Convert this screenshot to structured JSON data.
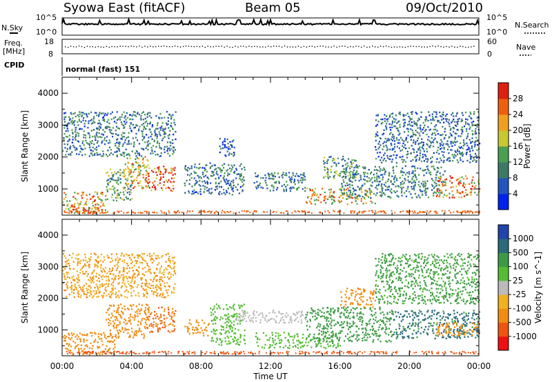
{
  "header": {
    "station": "Syowa East (fitACF)",
    "beam": "Beam 05",
    "date": "09/Oct/2010"
  },
  "status_panels": {
    "nsky_label": "N.Sky",
    "nsearch_label": "N.Search",
    "noise_ticks_left": [
      "10^5",
      "10^0"
    ],
    "noise_ticks_right": [
      "10^5",
      "10^0"
    ],
    "freq_label_1": "Freq.",
    "freq_label_2": "[MHz]",
    "freq_ticks": [
      "18",
      "8"
    ],
    "nave_label": "Nave",
    "nave_ticks": [
      "60",
      "0"
    ],
    "cpid_label": "CPID",
    "cpid_text": "normal (fast) 151"
  },
  "colors": {
    "power_scale": [
      "#0022ee",
      "#2255bb",
      "#3d7a66",
      "#4aa050",
      "#c8c832",
      "#f0a020",
      "#ee6010",
      "#dd2010"
    ],
    "velocity_scale": [
      "#ee1010",
      "#ee5510",
      "#f08c10",
      "#f0b020",
      "#bbbbbb",
      "#55bb33",
      "#3c9a44",
      "#2a6a7a",
      "#2244aa"
    ]
  },
  "chart_data": [
    {
      "type": "heatmap",
      "panel": "power",
      "xlabel": "Time UT",
      "ylabel": "Slant Range [km]",
      "colorbar_label": "Power [dB]",
      "x_ticks": [
        "00:00",
        "04:00",
        "08:00",
        "12:00",
        "16:00",
        "20:00",
        "00:00"
      ],
      "xlim_hours": [
        0,
        24
      ],
      "y_ticks": [
        "1000",
        "2000",
        "3000",
        "4000"
      ],
      "ylim_km": [
        180,
        4500
      ],
      "colorbar_ticks": [
        "4",
        "8",
        "12",
        "16",
        "20",
        "24",
        "28"
      ],
      "colorbar_range": [
        0,
        32
      ],
      "regions": [
        {
          "t0": 0.0,
          "t1": 2.5,
          "r0": 200,
          "r1": 900,
          "value": 22
        },
        {
          "t0": 0.5,
          "t1": 2.0,
          "r0": 200,
          "r1": 400,
          "value": 28
        },
        {
          "t0": 2.5,
          "t1": 4.0,
          "r0": 600,
          "r1": 1600,
          "value": 14
        },
        {
          "t0": 3.5,
          "t1": 5.0,
          "r0": 1000,
          "r1": 2000,
          "value": 20
        },
        {
          "t0": 4.8,
          "t1": 6.5,
          "r0": 900,
          "r1": 1700,
          "value": 28
        },
        {
          "t0": 0.0,
          "t1": 6.5,
          "r0": 2000,
          "r1": 3400,
          "value": 9
        },
        {
          "t0": 7.0,
          "t1": 10.5,
          "r0": 800,
          "r1": 1800,
          "value": 9
        },
        {
          "t0": 9.0,
          "t1": 10.0,
          "r0": 2000,
          "r1": 2600,
          "value": 7
        },
        {
          "t0": 11.0,
          "t1": 14.0,
          "r0": 900,
          "r1": 1500,
          "value": 10
        },
        {
          "t0": 14.0,
          "t1": 18.0,
          "r0": 500,
          "r1": 1000,
          "value": 20
        },
        {
          "t0": 15.0,
          "t1": 17.0,
          "r0": 1300,
          "r1": 2000,
          "value": 12
        },
        {
          "t0": 16.0,
          "t1": 22.0,
          "r0": 700,
          "r1": 1700,
          "value": 10
        },
        {
          "t0": 21.5,
          "t1": 24.0,
          "r0": 700,
          "r1": 1400,
          "value": 24
        },
        {
          "t0": 18.0,
          "t1": 24.0,
          "r0": 1800,
          "r1": 3400,
          "value": 8
        }
      ]
    },
    {
      "type": "heatmap",
      "panel": "velocity",
      "xlabel": "Time UT",
      "ylabel": "Slant Range [km]",
      "colorbar_label": "Velocity [m s^-1]",
      "x_ticks": [
        "00:00",
        "04:00",
        "08:00",
        "12:00",
        "16:00",
        "20:00",
        "00:00"
      ],
      "xlim_hours": [
        0,
        24
      ],
      "y_ticks": [
        "1000",
        "2000",
        "3000",
        "4000"
      ],
      "ylim_km": [
        180,
        4500
      ],
      "colorbar_ticks": [
        "1000",
        "500",
        "100",
        "25",
        "-25",
        "-100",
        "-500",
        "-1000"
      ],
      "regions": [
        {
          "t0": 0.0,
          "t1": 3.0,
          "r0": 200,
          "r1": 900,
          "value": -200
        },
        {
          "t0": 2.5,
          "t1": 5.0,
          "r0": 700,
          "r1": 1800,
          "value": -150
        },
        {
          "t0": 4.8,
          "t1": 6.5,
          "r0": 900,
          "r1": 1700,
          "value": -500
        },
        {
          "t0": 0.0,
          "t1": 6.5,
          "r0": 2000,
          "r1": 3400,
          "value": -100
        },
        {
          "t0": 7.0,
          "t1": 8.5,
          "r0": 800,
          "r1": 1300,
          "value": -150
        },
        {
          "t0": 8.5,
          "t1": 10.5,
          "r0": 500,
          "r1": 1800,
          "value": 60
        },
        {
          "t0": 10.0,
          "t1": 14.0,
          "r0": 1200,
          "r1": 1600,
          "value": 0
        },
        {
          "t0": 11.0,
          "t1": 16.0,
          "r0": 400,
          "r1": 900,
          "value": 80
        },
        {
          "t0": 14.0,
          "t1": 19.0,
          "r0": 600,
          "r1": 1700,
          "value": 150
        },
        {
          "t0": 16.0,
          "t1": 18.0,
          "r0": 1700,
          "r1": 2300,
          "value": -150
        },
        {
          "t0": 19.0,
          "t1": 24.0,
          "r0": 700,
          "r1": 1600,
          "value": 600
        },
        {
          "t0": 21.5,
          "t1": 24.0,
          "r0": 800,
          "r1": 1200,
          "value": -300
        },
        {
          "t0": 18.0,
          "t1": 24.0,
          "r0": 1800,
          "r1": 3400,
          "value": 120
        }
      ]
    }
  ]
}
